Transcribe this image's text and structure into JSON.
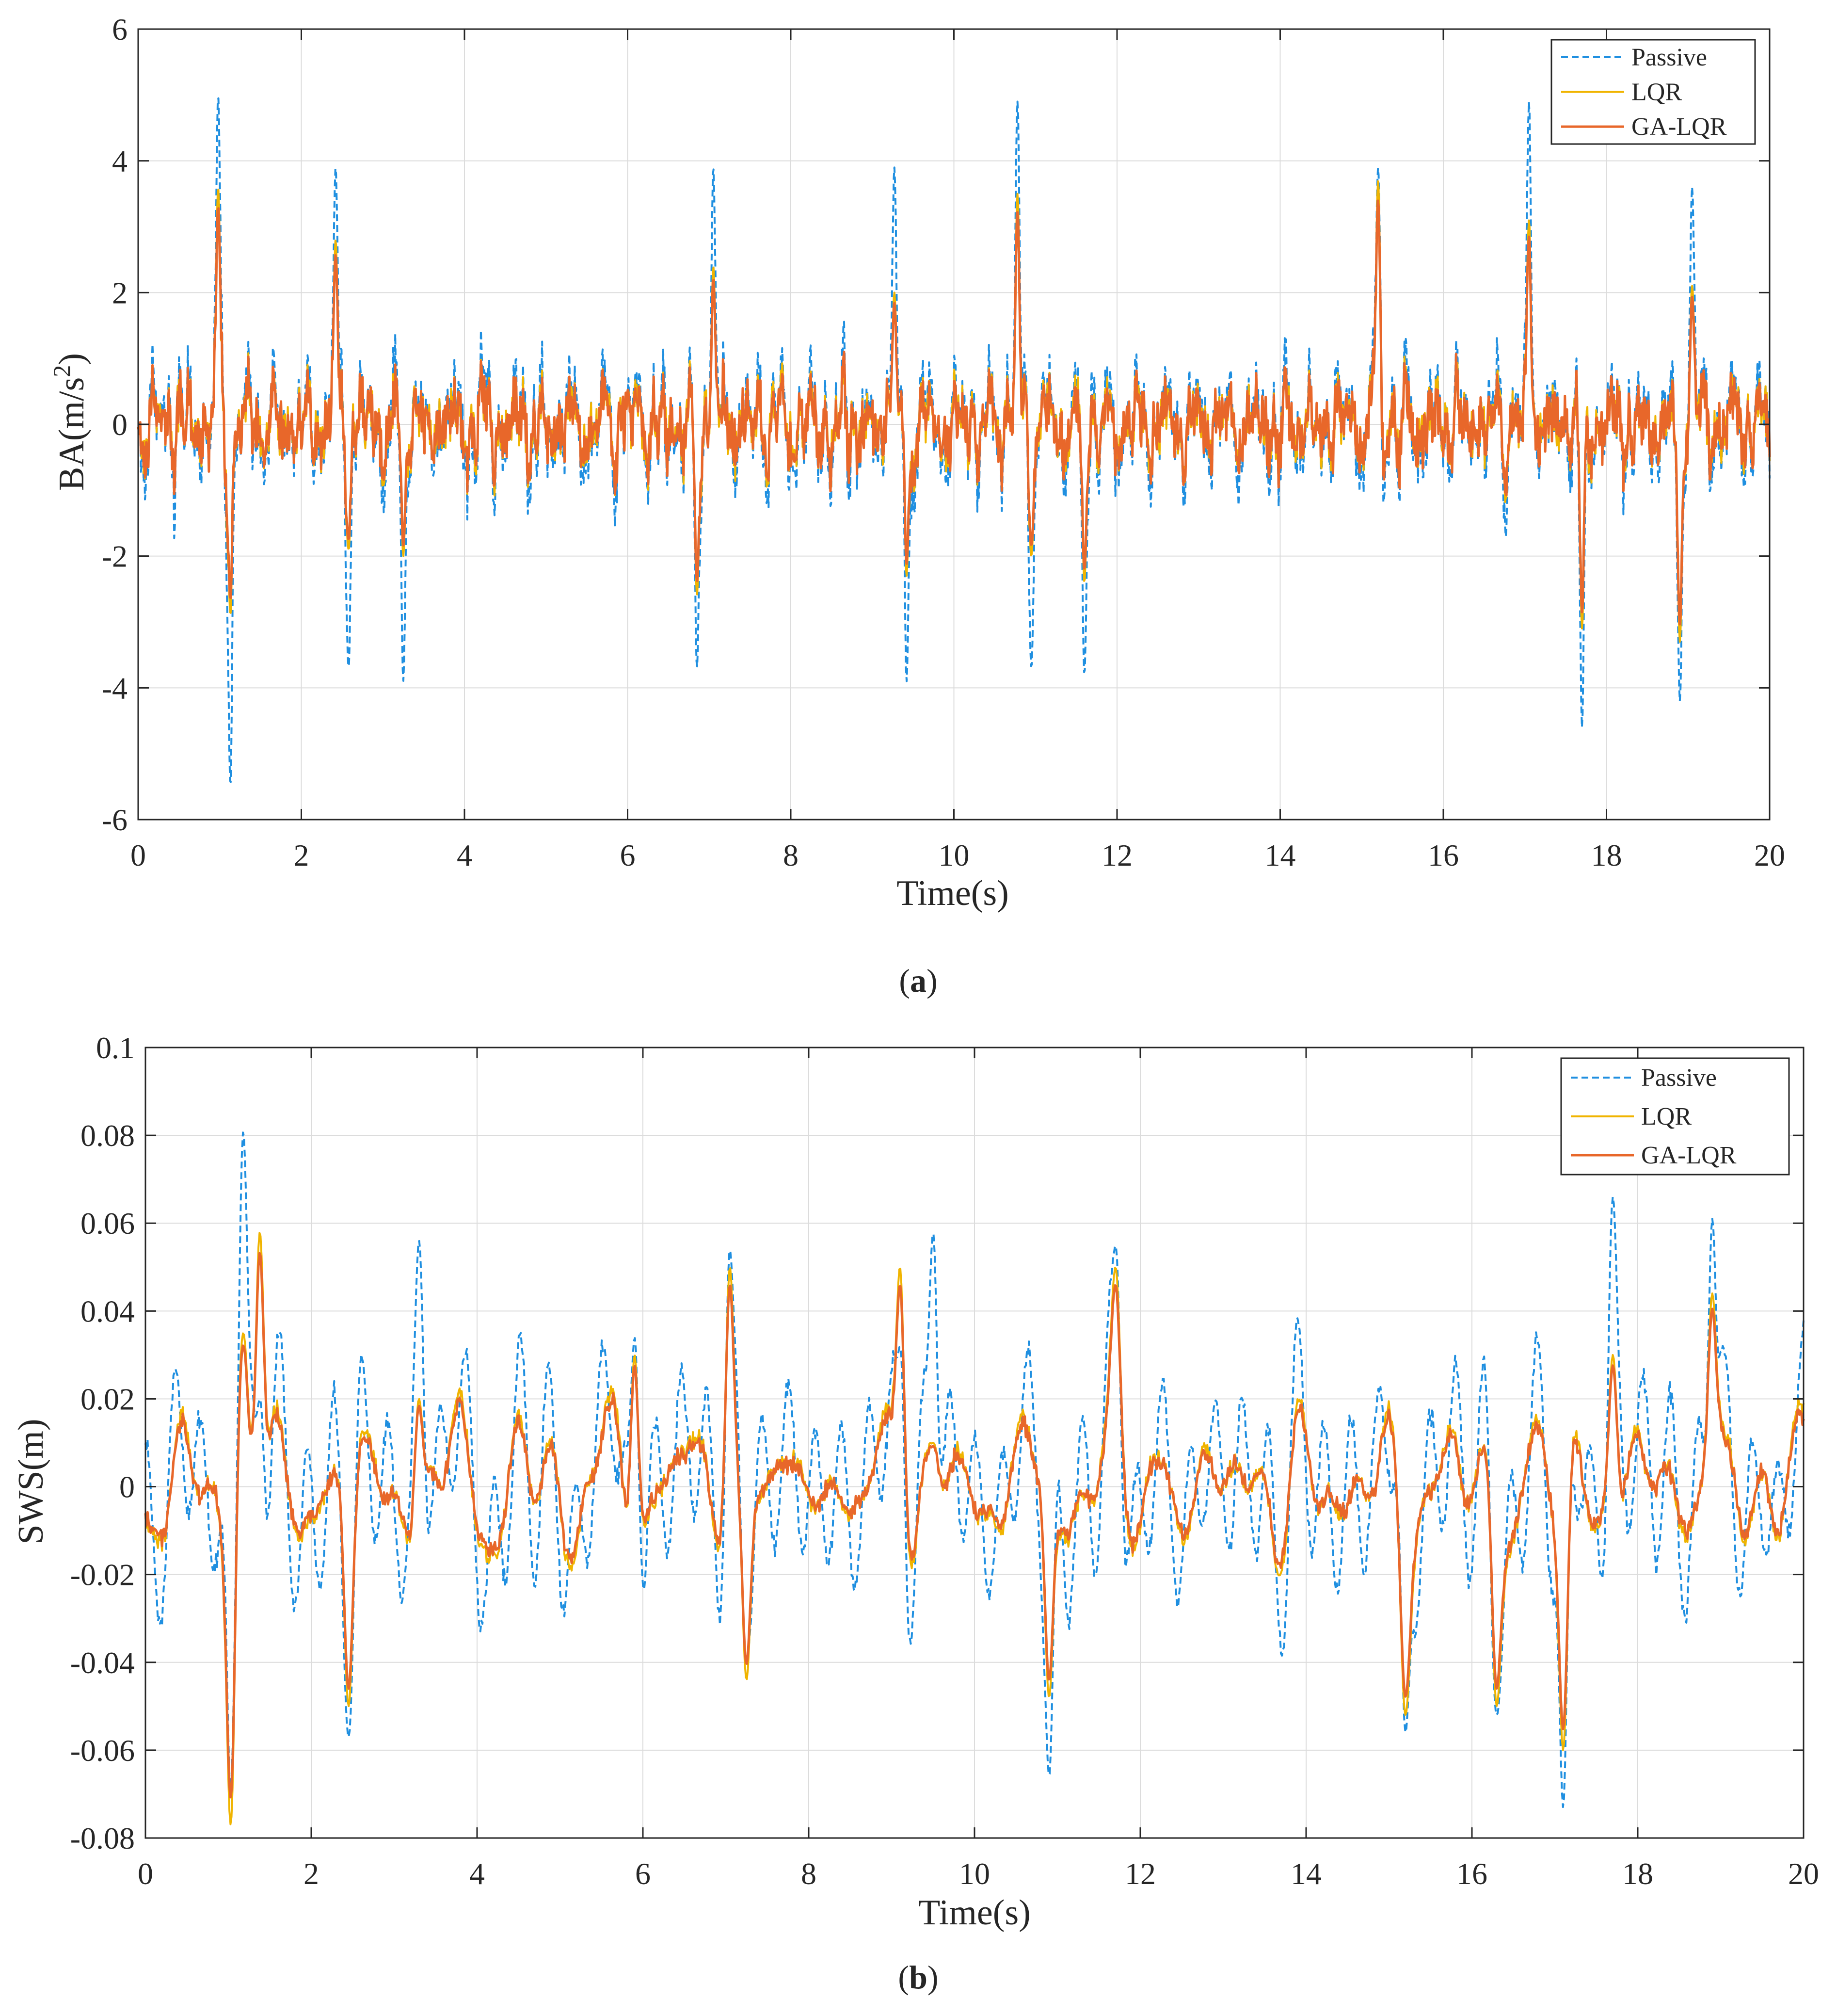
{
  "colors": {
    "passive": "#1f8fe0",
    "lqr": "#f0b400",
    "galqr": "#e8672a",
    "grid": "#dcdcdc",
    "axis": "#262626"
  },
  "chart_data": [
    {
      "type": "line",
      "panel": "a",
      "caption_letter": "a",
      "caption_open": "(",
      "caption_close": ")",
      "xlabel": "Time(s)",
      "ylabel": "BA(m/s²)",
      "xlim": [
        0,
        20
      ],
      "ylim": [
        -6,
        6
      ],
      "xticks": [
        0,
        2,
        4,
        6,
        8,
        10,
        12,
        14,
        16,
        18,
        20
      ],
      "yticks": [
        -6,
        -4,
        -2,
        0,
        2,
        4,
        6
      ],
      "ytick_labels": [
        "-6",
        "-4",
        "-2",
        "0",
        "2",
        "4",
        "6"
      ],
      "grid": true,
      "legend_position": "top-right",
      "seed": 7,
      "series": [
        {
          "name": "Passive",
          "style": "dashed",
          "amplitude": 1.0
        },
        {
          "name": "LQR",
          "style": "solid",
          "amplitude": 0.68
        },
        {
          "name": "GA-LQR",
          "style": "solid",
          "amplitude": 0.66
        }
      ],
      "peaks": [
        {
          "x": 0.98,
          "y": 5.0,
          "controlled": 3.6
        },
        {
          "x": 1.13,
          "y": -5.5,
          "controlled": -2.9
        },
        {
          "x": 2.42,
          "y": 3.9,
          "controlled": 2.8
        },
        {
          "x": 2.58,
          "y": -3.7,
          "controlled": -1.9
        },
        {
          "x": 3.25,
          "y": -3.9,
          "controlled": -2.0
        },
        {
          "x": 6.85,
          "y": -3.7,
          "controlled": -2.6
        },
        {
          "x": 7.05,
          "y": 3.9,
          "controlled": 2.4
        },
        {
          "x": 9.27,
          "y": 3.9,
          "controlled": 2.0
        },
        {
          "x": 9.42,
          "y": -3.9,
          "controlled": -2.3
        },
        {
          "x": 10.78,
          "y": 4.9,
          "controlled": 3.5
        },
        {
          "x": 10.95,
          "y": -3.7,
          "controlled": -2.0
        },
        {
          "x": 11.6,
          "y": -3.8,
          "controlled": -2.4
        },
        {
          "x": 15.2,
          "y": 3.9,
          "controlled": 3.7
        },
        {
          "x": 17.05,
          "y": 4.9,
          "controlled": 3.1
        },
        {
          "x": 17.7,
          "y": -4.6,
          "controlled": -3.1
        },
        {
          "x": 18.9,
          "y": -4.2,
          "controlled": -3.3
        },
        {
          "x": 19.05,
          "y": 3.6,
          "controlled": 2.1
        }
      ]
    },
    {
      "type": "line",
      "panel": "b",
      "caption_letter": "b",
      "caption_open": "(",
      "caption_close": ")",
      "xlabel": "Time(s)",
      "ylabel": "SWS(m)",
      "xlim": [
        0,
        20
      ],
      "ylim": [
        -0.08,
        0.1
      ],
      "xticks": [
        0,
        2,
        4,
        6,
        8,
        10,
        12,
        14,
        16,
        18,
        20
      ],
      "yticks": [
        -0.08,
        -0.06,
        -0.04,
        -0.02,
        0,
        0.02,
        0.04,
        0.06,
        0.08,
        0.1
      ],
      "ytick_labels": [
        "-0.08",
        "-0.06",
        "-0.04",
        "-0.02",
        "0",
        "0.02",
        "0.04",
        "0.06",
        "0.08",
        "0.1"
      ],
      "grid": true,
      "legend_position": "top-right",
      "seed": 13,
      "series": [
        {
          "name": "Passive",
          "style": "dashed",
          "amplitude": 1.0
        },
        {
          "name": "LQR",
          "style": "solid",
          "amplitude": 0.92
        },
        {
          "name": "GA-LQR",
          "style": "solid",
          "amplitude": 0.82
        }
      ],
      "peaks": [
        {
          "x": 1.03,
          "y": -0.07,
          "controlled": -0.078
        },
        {
          "x": 1.18,
          "y": 0.081,
          "controlled": 0.035
        },
        {
          "x": 1.38,
          "y": 0.02,
          "controlled": 0.058
        },
        {
          "x": 2.45,
          "y": -0.057,
          "controlled": -0.05
        },
        {
          "x": 3.3,
          "y": 0.056,
          "controlled": 0.02
        },
        {
          "x": 5.9,
          "y": 0.034,
          "controlled": 0.03
        },
        {
          "x": 7.05,
          "y": 0.054,
          "controlled": 0.05
        },
        {
          "x": 7.25,
          "y": -0.04,
          "controlled": -0.044
        },
        {
          "x": 9.1,
          "y": 0.032,
          "controlled": 0.05
        },
        {
          "x": 9.5,
          "y": 0.058,
          "controlled": 0.01
        },
        {
          "x": 10.9,
          "y": -0.066,
          "controlled": -0.048
        },
        {
          "x": 11.7,
          "y": 0.055,
          "controlled": 0.05
        },
        {
          "x": 15.2,
          "y": -0.056,
          "controlled": -0.052
        },
        {
          "x": 16.3,
          "y": -0.052,
          "controlled": -0.05
        },
        {
          "x": 17.1,
          "y": -0.073,
          "controlled": -0.06
        },
        {
          "x": 17.7,
          "y": 0.066,
          "controlled": 0.03
        },
        {
          "x": 18.9,
          "y": 0.061,
          "controlled": 0.044
        }
      ]
    }
  ]
}
